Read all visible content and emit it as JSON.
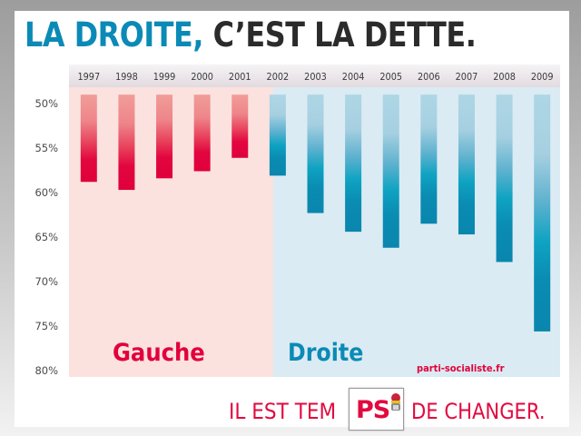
{
  "title": {
    "part_highlight": "LA DROITE,",
    "part_rest": "C’EST LA DETTE."
  },
  "colors": {
    "droite_blue": "#0b8ab6",
    "gauche_red": "#e2003c",
    "gauche_bg": "#fbe2df",
    "droite_bg": "#dbebf3",
    "header_band": "#e6e0e4",
    "title_dark": "#2b2b2b"
  },
  "chart_data": {
    "type": "bar",
    "title": "LA DROITE, C’EST LA DETTE.",
    "xlabel": "",
    "ylabel": "",
    "categories": [
      "1997",
      "1998",
      "1999",
      "2000",
      "2001",
      "2002",
      "2003",
      "2004",
      "2005",
      "2006",
      "2007",
      "2008",
      "2009"
    ],
    "values": [
      58.8,
      59.7,
      58.4,
      57.6,
      56.1,
      58.1,
      62.3,
      64.4,
      66.2,
      63.5,
      64.7,
      67.8,
      75.6
    ],
    "baseline": 49,
    "ylim": [
      49,
      81
    ],
    "y_inverted": true,
    "yticks": [
      50,
      55,
      60,
      65,
      70,
      75,
      80
    ],
    "ytick_labels": [
      "50%",
      "55%",
      "60%",
      "65%",
      "70%",
      "75%",
      "80%"
    ],
    "groups": [
      {
        "name": "Gauche",
        "years": [
          "1997",
          "1998",
          "1999",
          "2000",
          "2001"
        ]
      },
      {
        "name": "Droite",
        "years": [
          "2002",
          "2003",
          "2004",
          "2005",
          "2006",
          "2007",
          "2008",
          "2009"
        ]
      }
    ],
    "grid": false,
    "source": "parti-socialiste.fr"
  },
  "slogan": {
    "before": "IL EST TEM",
    "logo": "PS",
    "after": "DE CHANGER."
  }
}
